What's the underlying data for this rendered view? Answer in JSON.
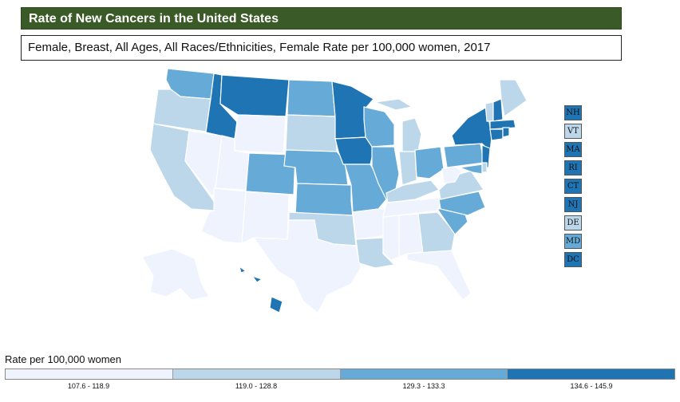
{
  "title": "Rate of New Cancers in the United States",
  "subtitle": "Female, Breast, All Ages, All Races/Ethnicities, Female Rate per 100,000 women, 2017",
  "colors": {
    "c1": "#eef3fd",
    "c2": "#bcd7e9",
    "c3": "#66aad8",
    "c4": "#1f74b4"
  },
  "small_states": [
    {
      "abbr": "NH",
      "cls": "c4"
    },
    {
      "abbr": "VT",
      "cls": "c2"
    },
    {
      "abbr": "MA",
      "cls": "c4"
    },
    {
      "abbr": "RI",
      "cls": "c4"
    },
    {
      "abbr": "CT",
      "cls": "c4"
    },
    {
      "abbr": "NJ",
      "cls": "c4"
    },
    {
      "abbr": "DE",
      "cls": "c2"
    },
    {
      "abbr": "MD",
      "cls": "c3"
    },
    {
      "abbr": "DC",
      "cls": "c4"
    }
  ],
  "legend": {
    "title": "Rate per 100,000 women",
    "ranges": [
      "107.6 - 118.9",
      "119.0 - 128.8",
      "129.3 - 133.3",
      "134.6 - 145.9"
    ]
  }
}
